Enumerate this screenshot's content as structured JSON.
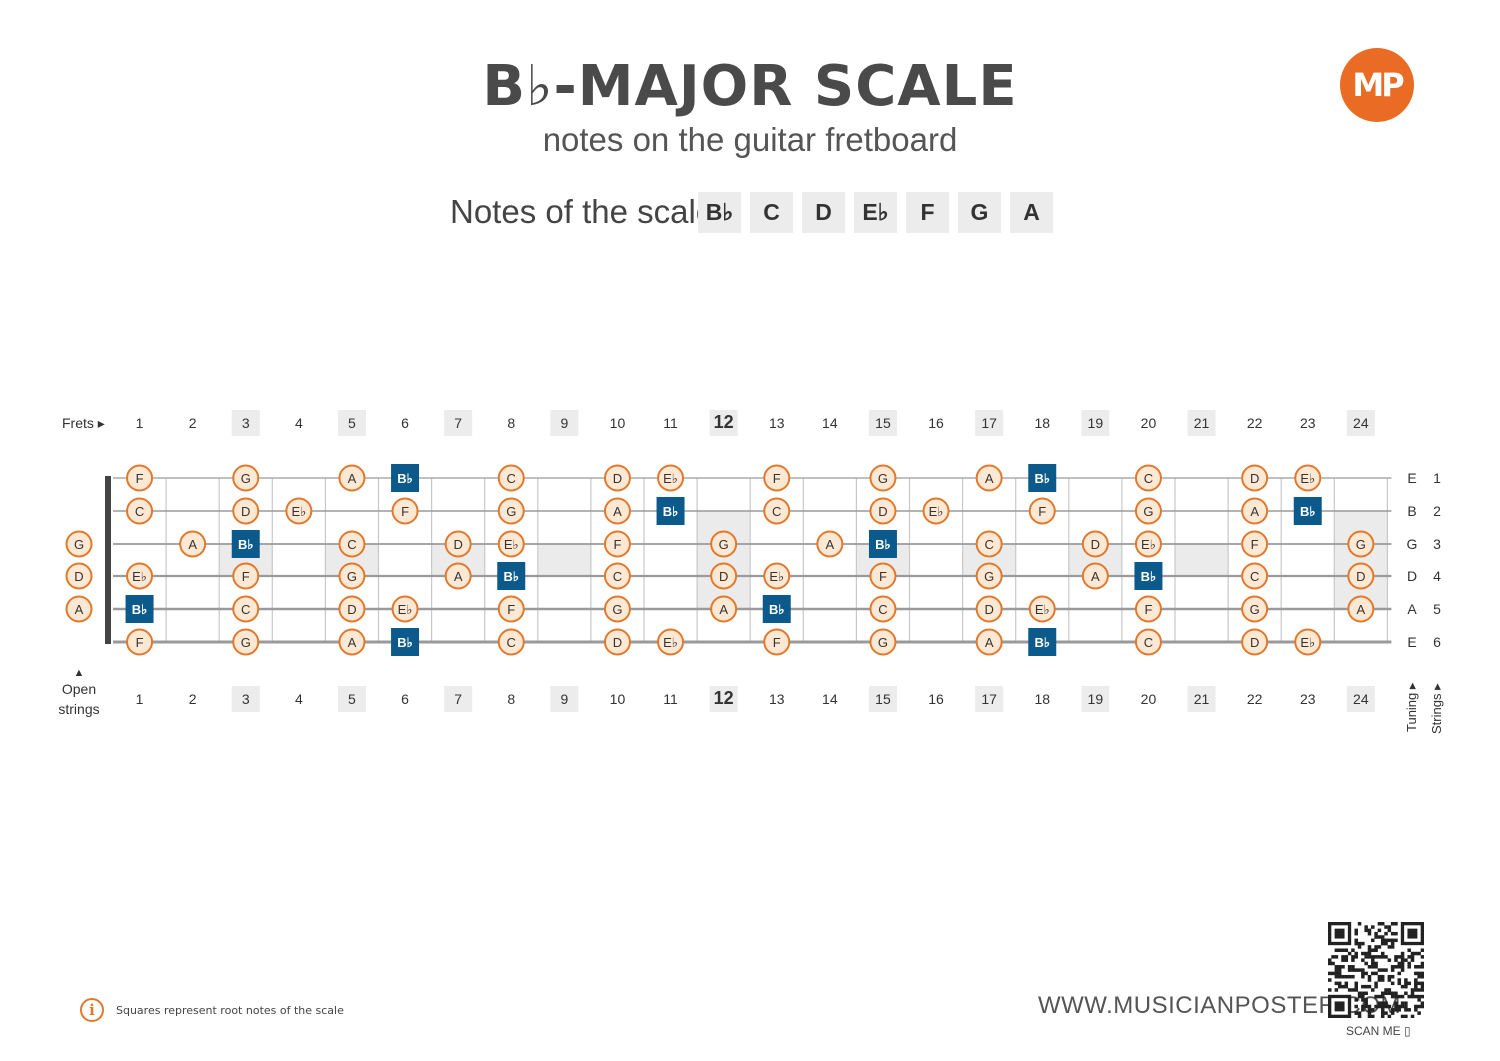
{
  "header": {
    "title": "B♭-MAJOR SCALE",
    "subtitle": "notes on the guitar fretboard",
    "notes_label": "Notes of the scale:",
    "scale_notes": [
      "B♭",
      "C",
      "D",
      "E♭",
      "F",
      "G",
      "A"
    ],
    "logo_text": "MP"
  },
  "fretboard": {
    "frets_label": "Frets ▸",
    "open_strings_label_1": "Open",
    "open_strings_label_2": "strings",
    "tuning_label": "Tuning ▸",
    "strings_label": "Strings ▸",
    "fret_numbers": [
      "1",
      "2",
      "3",
      "4",
      "5",
      "6",
      "7",
      "8",
      "9",
      "10",
      "11",
      "12",
      "13",
      "14",
      "15",
      "16",
      "17",
      "18",
      "19",
      "20",
      "21",
      "22",
      "23",
      "24"
    ],
    "marked_frets": [
      3,
      5,
      7,
      9,
      12,
      15,
      17,
      19,
      21,
      24
    ],
    "bold_frets": [
      12
    ],
    "strings": [
      {
        "tuning": "E",
        "number": "1",
        "open": "",
        "notes": {
          "1": "F",
          "3": "G",
          "5": "A",
          "6": "B♭",
          "8": "C",
          "10": "D",
          "11": "E♭",
          "13": "F",
          "15": "G",
          "17": "A",
          "18": "B♭",
          "20": "C",
          "22": "D",
          "23": "E♭"
        }
      },
      {
        "tuning": "B",
        "number": "2",
        "open": "",
        "notes": {
          "1": "C",
          "3": "D",
          "4": "E♭",
          "6": "F",
          "8": "G",
          "10": "A",
          "11": "B♭",
          "13": "C",
          "15": "D",
          "16": "E♭",
          "18": "F",
          "20": "G",
          "22": "A",
          "23": "B♭"
        }
      },
      {
        "tuning": "G",
        "number": "3",
        "open": "G",
        "notes": {
          "2": "A",
          "3": "B♭",
          "5": "C",
          "7": "D",
          "8": "E♭",
          "10": "F",
          "12": "G",
          "14": "A",
          "15": "B♭",
          "17": "C",
          "19": "D",
          "20": "E♭",
          "22": "F",
          "24": "G"
        }
      },
      {
        "tuning": "D",
        "number": "4",
        "open": "D",
        "notes": {
          "1": "E♭",
          "3": "F",
          "5": "G",
          "7": "A",
          "8": "B♭",
          "10": "C",
          "12": "D",
          "13": "E♭",
          "15": "F",
          "17": "G",
          "19": "A",
          "20": "B♭",
          "22": "C",
          "24": "D"
        }
      },
      {
        "tuning": "A",
        "number": "5",
        "open": "A",
        "notes": {
          "1": "B♭",
          "3": "C",
          "5": "D",
          "6": "E♭",
          "8": "F",
          "10": "G",
          "12": "A",
          "13": "B♭",
          "15": "C",
          "17": "D",
          "18": "E♭",
          "20": "F",
          "22": "G",
          "24": "A"
        }
      },
      {
        "tuning": "E",
        "number": "6",
        "open": "",
        "notes": {
          "1": "F",
          "3": "G",
          "5": "A",
          "6": "B♭",
          "8": "C",
          "10": "D",
          "11": "E♭",
          "13": "F",
          "15": "G",
          "17": "A",
          "18": "B♭",
          "20": "C",
          "22": "D",
          "23": "E♭"
        }
      }
    ],
    "root_note": "B♭"
  },
  "footer": {
    "info_icon": "info-icon",
    "info_text": "Squares represent root notes of the scale",
    "website": "WWW.MUSICIANPOSTER.COM",
    "scan_me": "SCAN ME ▯"
  },
  "colors": {
    "accent_orange": "#e0792d",
    "note_fill": "#fde8d4",
    "root_blue": "#0c5a8c",
    "marker_gray": "#ececec",
    "text_dark": "#444444"
  }
}
